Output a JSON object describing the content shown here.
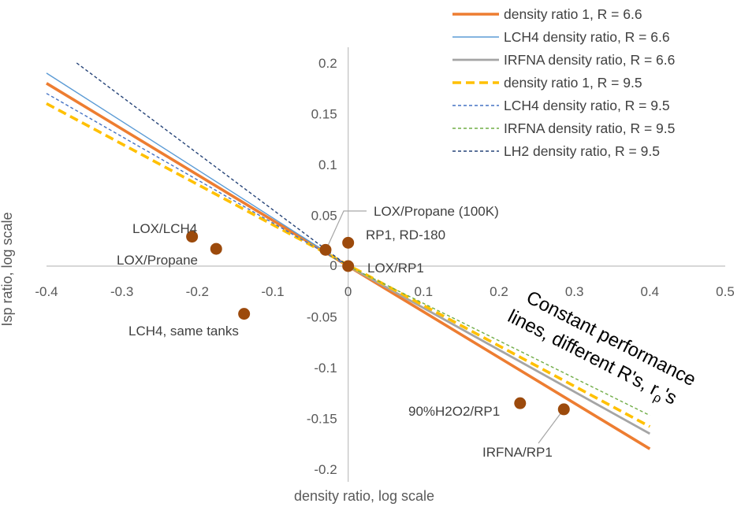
{
  "chart_data": {
    "type": "line",
    "xlabel": "density ratio, log scale",
    "ylabel": "Isp ratio, log scale",
    "xlim": [
      -0.4,
      0.5
    ],
    "ylim": [
      -0.2,
      0.2
    ],
    "x_ticks": [
      "-0.4",
      "-0.3",
      "-0.2",
      "-0.1",
      "0",
      "0.1",
      "0.2",
      "0.3",
      "0.4",
      "0.5"
    ],
    "y_ticks": [
      "0.2",
      "0.15",
      "0.1",
      "0.05",
      "0",
      "-0.05",
      "-0.1",
      "-0.15",
      "-0.2"
    ],
    "grid": false,
    "legend_position": "top-right",
    "series": [
      {
        "name": "density ratio 1, R = 6.6",
        "color": "#ED7D31",
        "style": "solid",
        "weight": "thick",
        "x": [
          -0.4,
          0.4
        ],
        "y": [
          0.18,
          -0.18
        ]
      },
      {
        "name": "LCH4 density ratio, R = 6.6",
        "color": "#5B9BD5",
        "style": "solid",
        "weight": "thin",
        "x": [
          -0.4,
          0.0
        ],
        "y": [
          0.19,
          0.0
        ]
      },
      {
        "name": "IRFNA density ratio, R = 6.6",
        "color": "#A5A5A5",
        "style": "solid",
        "weight": "medium",
        "x": [
          0.0,
          0.4
        ],
        "y": [
          0.0,
          -0.165
        ]
      },
      {
        "name": "density ratio 1, R = 9.5",
        "color": "#FFC000",
        "style": "dashed",
        "weight": "thick",
        "x": [
          -0.4,
          0.4
        ],
        "y": [
          0.16,
          -0.158
        ]
      },
      {
        "name": "LCH4 density ratio, R = 9.5",
        "color": "#4472C4",
        "style": "dashed",
        "weight": "thin",
        "x": [
          -0.4,
          0.0
        ],
        "y": [
          0.17,
          0.0
        ]
      },
      {
        "name": "IRFNA density ratio, R = 9.5",
        "color": "#70AD47",
        "style": "dashed",
        "weight": "thin",
        "x": [
          0.0,
          0.4
        ],
        "y": [
          0.0,
          -0.147
        ]
      },
      {
        "name": "LH2 density ratio, R = 9.5",
        "color": "#264478",
        "style": "dashed",
        "weight": "thin",
        "x": [
          -0.36,
          0.0
        ],
        "y": [
          0.2,
          0.0
        ]
      }
    ],
    "points": [
      {
        "label": "LOX/LCH4",
        "x": -0.207,
        "y": 0.029
      },
      {
        "label": "LOX/Propane",
        "x": -0.175,
        "y": 0.017
      },
      {
        "label": "LCH4, same tanks",
        "x": -0.138,
        "y": -0.047
      },
      {
        "label": "LOX/Propane (100K)",
        "x": -0.03,
        "y": 0.016
      },
      {
        "label": "RP1, RD-180",
        "x": 0.0,
        "y": 0.023
      },
      {
        "label": "LOX/RP1",
        "x": 0.0,
        "y": 0.0
      },
      {
        "label": "90%H2O2/RP1",
        "x": 0.228,
        "y": -0.135
      },
      {
        "label": "IRFNA/RP1",
        "x": 0.286,
        "y": -0.141
      }
    ],
    "point_color": "#9C4A0C",
    "annotation": [
      "Constant performance",
      "lines, different R's, r",
      "'s"
    ],
    "annotation_subscript": "ρ"
  }
}
